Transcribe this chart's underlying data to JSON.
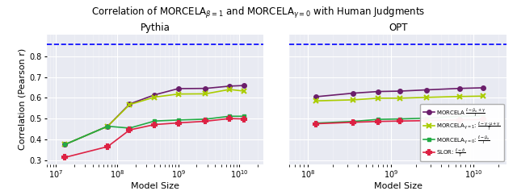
{
  "ylabel": "Correlation (Pearson r)",
  "xlabel": "Model Size",
  "dashed_line_y": 0.858,
  "pythia_x": [
    14000000.0,
    70000000.0,
    160000000.0,
    410000000.0,
    1000000000.0,
    2800000000.0,
    6900000000.0,
    12000000000.0
  ],
  "pythia_morcela_beta1": [
    0.375,
    0.463,
    0.57,
    0.614,
    0.644,
    0.645,
    0.656,
    0.659
  ],
  "pythia_morcela_beta1_v2": [
    0.375,
    0.463,
    0.567,
    0.603,
    0.618,
    0.619,
    0.64,
    0.632
  ],
  "pythia_morcela_gamma0": [
    0.375,
    0.463,
    0.454,
    0.488,
    0.493,
    0.497,
    0.511,
    0.511
  ],
  "pythia_slor": [
    0.313,
    0.365,
    0.445,
    0.471,
    0.479,
    0.487,
    0.5,
    0.498
  ],
  "opt_x": [
    125000000.0,
    350000000.0,
    700000000.0,
    1300000000.0,
    2700000000.0,
    6700000000.0,
    13000000000.0
  ],
  "opt_morcela_beta1": [
    0.605,
    0.622,
    0.63,
    0.632,
    0.638,
    0.645,
    0.648
  ],
  "opt_morcela_beta1_v2": [
    0.585,
    0.59,
    0.598,
    0.598,
    0.602,
    0.606,
    0.608
  ],
  "opt_morcela_gamma0": [
    0.478,
    0.486,
    0.496,
    0.498,
    0.502,
    0.511,
    0.512
  ],
  "opt_slor": [
    0.475,
    0.482,
    0.486,
    0.488,
    0.49,
    0.493,
    0.496
  ],
  "color_morcela_beta1": "#6B1E6B",
  "color_morcela_beta1_v2": "#AACC00",
  "color_morcela_gamma0": "#22AA44",
  "color_slor": "#DD2244",
  "bg_color": "#E8EAF2",
  "ylim": [
    0.28,
    0.905
  ],
  "yticks": [
    0.3,
    0.4,
    0.5,
    0.6,
    0.7,
    0.8
  ],
  "pythia_xlim": [
    7000000.0,
    25000000000.0
  ],
  "opt_xlim": [
    60000000.0,
    25000000000.0
  ]
}
